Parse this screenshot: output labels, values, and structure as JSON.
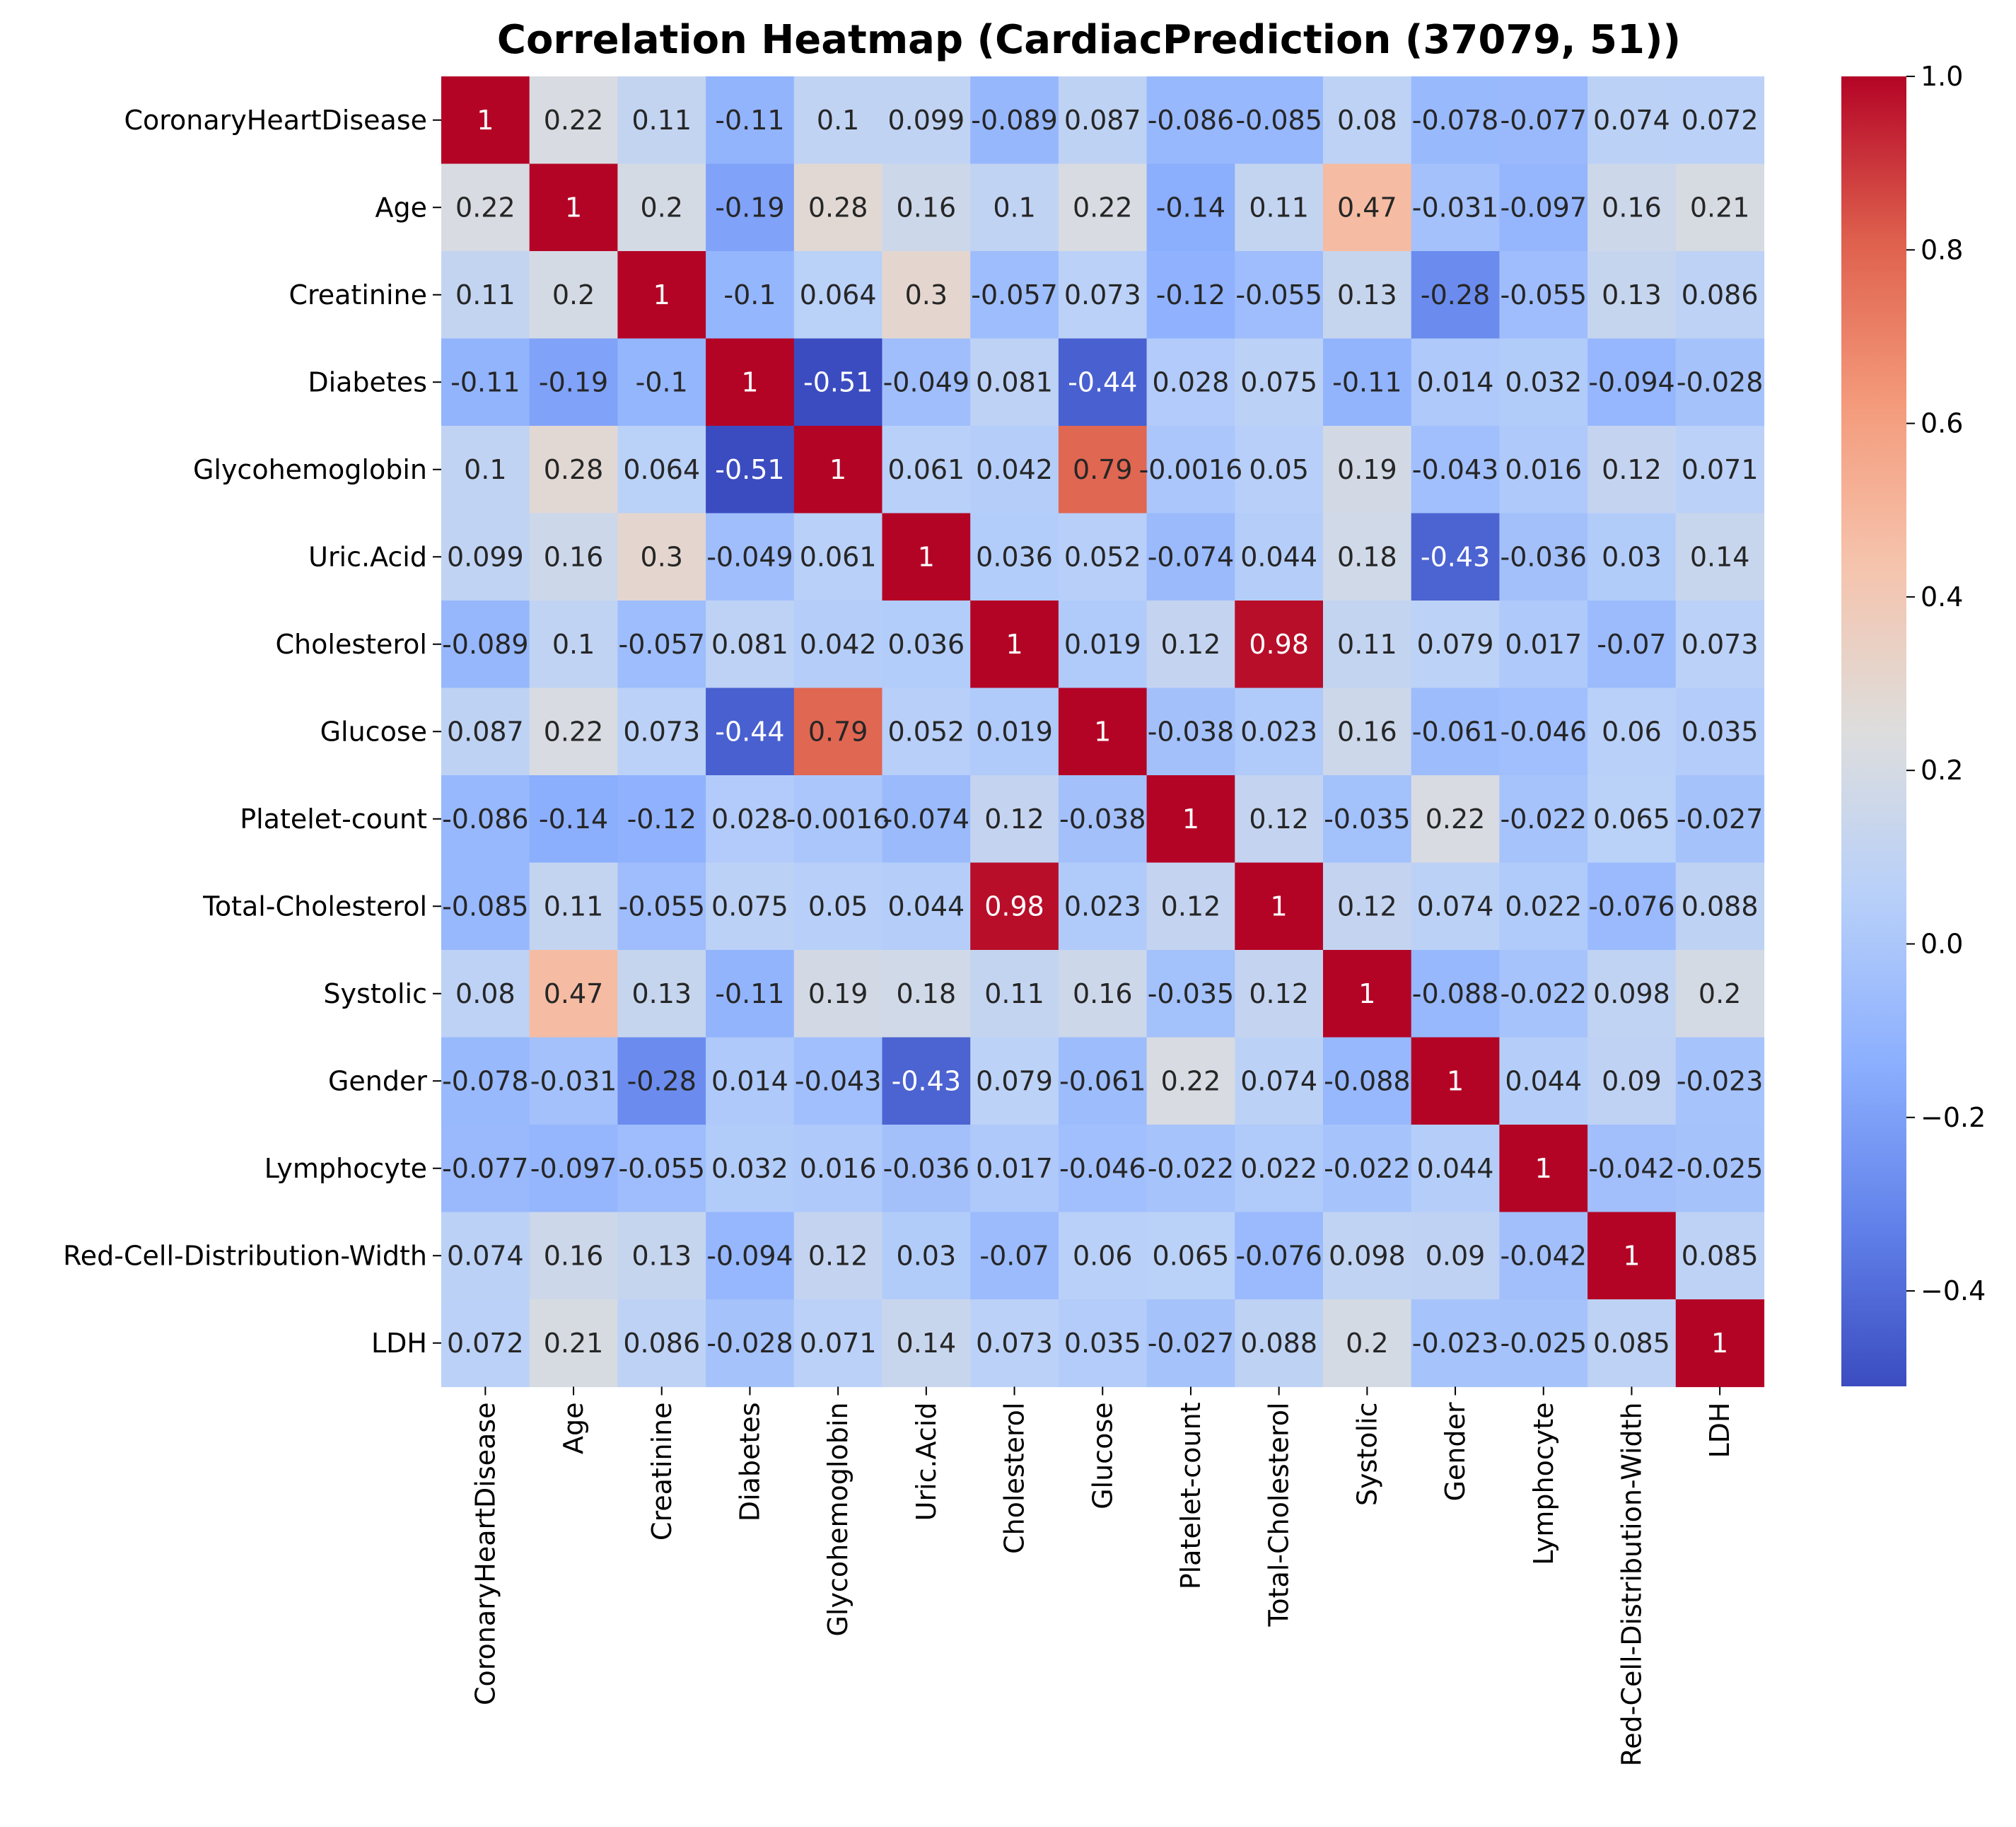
{
  "chart_data": {
    "type": "heatmap",
    "title": "Correlation Heatmap (CardiacPrediction (37079, 51))",
    "xlabel": "",
    "ylabel": "",
    "colormap": "coolwarm",
    "vmin": -0.51,
    "vmax": 1.0,
    "labels": [
      "CoronaryHeartDisease",
      "Age",
      "Creatinine",
      "Diabetes",
      "Glycohemoglobin",
      "Uric.Acid",
      "Cholesterol",
      "Glucose",
      "Platelet-count",
      "Total-Cholesterol",
      "Systolic",
      "Gender",
      "Lymphocyte",
      "Red-Cell-Distribution-Width",
      "LDH"
    ],
    "values": [
      [
        1,
        0.22,
        0.11,
        -0.11,
        0.1,
        0.099,
        -0.089,
        0.087,
        -0.086,
        -0.085,
        0.08,
        -0.078,
        -0.077,
        0.074,
        0.072
      ],
      [
        0.22,
        1,
        0.2,
        -0.19,
        0.28,
        0.16,
        0.1,
        0.22,
        -0.14,
        0.11,
        0.47,
        -0.031,
        -0.097,
        0.16,
        0.21
      ],
      [
        0.11,
        0.2,
        1,
        -0.1,
        0.064,
        0.3,
        -0.057,
        0.073,
        -0.12,
        -0.055,
        0.13,
        -0.28,
        -0.055,
        0.13,
        0.086
      ],
      [
        -0.11,
        -0.19,
        -0.1,
        1,
        -0.51,
        -0.049,
        0.081,
        -0.44,
        0.028,
        0.075,
        -0.11,
        0.014,
        0.032,
        -0.094,
        -0.028
      ],
      [
        0.1,
        0.28,
        0.064,
        -0.51,
        1,
        0.061,
        0.042,
        0.79,
        -0.0016,
        0.05,
        0.19,
        -0.043,
        0.016,
        0.12,
        0.071
      ],
      [
        0.099,
        0.16,
        0.3,
        -0.049,
        0.061,
        1,
        0.036,
        0.052,
        -0.074,
        0.044,
        0.18,
        -0.43,
        -0.036,
        0.03,
        0.14
      ],
      [
        -0.089,
        0.1,
        -0.057,
        0.081,
        0.042,
        0.036,
        1,
        0.019,
        0.12,
        0.98,
        0.11,
        0.079,
        0.017,
        -0.07,
        0.073
      ],
      [
        0.087,
        0.22,
        0.073,
        -0.44,
        0.79,
        0.052,
        0.019,
        1,
        -0.038,
        0.023,
        0.16,
        -0.061,
        -0.046,
        0.06,
        0.035
      ],
      [
        -0.086,
        -0.14,
        -0.12,
        0.028,
        -0.0016,
        -0.074,
        0.12,
        -0.038,
        1,
        0.12,
        -0.035,
        0.22,
        -0.022,
        0.065,
        -0.027
      ],
      [
        -0.085,
        0.11,
        -0.055,
        0.075,
        0.05,
        0.044,
        0.98,
        0.023,
        0.12,
        1,
        0.12,
        0.074,
        0.022,
        -0.076,
        0.088
      ],
      [
        0.08,
        0.47,
        0.13,
        -0.11,
        0.19,
        0.18,
        0.11,
        0.16,
        -0.035,
        0.12,
        1,
        -0.088,
        -0.022,
        0.098,
        0.2
      ],
      [
        -0.078,
        -0.031,
        -0.28,
        0.014,
        -0.043,
        -0.43,
        0.079,
        -0.061,
        0.22,
        0.074,
        -0.088,
        1,
        0.044,
        0.09,
        -0.023
      ],
      [
        -0.077,
        -0.097,
        -0.055,
        0.032,
        0.016,
        -0.036,
        0.017,
        -0.046,
        -0.022,
        0.022,
        -0.022,
        0.044,
        1,
        -0.042,
        -0.025
      ],
      [
        0.074,
        0.16,
        0.13,
        -0.094,
        0.12,
        0.03,
        -0.07,
        0.06,
        0.065,
        -0.076,
        0.098,
        0.09,
        -0.042,
        1,
        0.085
      ],
      [
        0.072,
        0.21,
        0.086,
        -0.028,
        0.071,
        0.14,
        0.073,
        0.035,
        -0.027,
        0.088,
        0.2,
        -0.023,
        -0.025,
        0.085,
        1
      ]
    ],
    "annotations": [
      [
        "1",
        "0.22",
        "0.11",
        "-0.11",
        "0.1",
        "0.099",
        "-0.089",
        "0.087",
        "-0.086",
        "-0.085",
        "0.08",
        "-0.078",
        "-0.077",
        "0.074",
        "0.072"
      ],
      [
        "0.22",
        "1",
        "0.2",
        "-0.19",
        "0.28",
        "0.16",
        "0.1",
        "0.22",
        "-0.14",
        "0.11",
        "0.47",
        "-0.031",
        "-0.097",
        "0.16",
        "0.21"
      ],
      [
        "0.11",
        "0.2",
        "1",
        "-0.1",
        "0.064",
        "0.3",
        "-0.057",
        "0.073",
        "-0.12",
        "-0.055",
        "0.13",
        "-0.28",
        "-0.055",
        "0.13",
        "0.086"
      ],
      [
        "-0.11",
        "-0.19",
        "-0.1",
        "1",
        "-0.51",
        "-0.049",
        "0.081",
        "-0.44",
        "0.028",
        "0.075",
        "-0.11",
        "0.014",
        "0.032",
        "-0.094",
        "-0.028"
      ],
      [
        "0.1",
        "0.28",
        "0.064",
        "-0.51",
        "1",
        "0.061",
        "0.042",
        "0.79",
        "-0.0016",
        "0.05",
        "0.19",
        "-0.043",
        "0.016",
        "0.12",
        "0.071"
      ],
      [
        "0.099",
        "0.16",
        "0.3",
        "-0.049",
        "0.061",
        "1",
        "0.036",
        "0.052",
        "-0.074",
        "0.044",
        "0.18",
        "-0.43",
        "-0.036",
        "0.03",
        "0.14"
      ],
      [
        "-0.089",
        "0.1",
        "-0.057",
        "0.081",
        "0.042",
        "0.036",
        "1",
        "0.019",
        "0.12",
        "0.98",
        "0.11",
        "0.079",
        "0.017",
        "-0.07",
        "0.073"
      ],
      [
        "0.087",
        "0.22",
        "0.073",
        "-0.44",
        "0.79",
        "0.052",
        "0.019",
        "1",
        "-0.038",
        "0.023",
        "0.16",
        "-0.061",
        "-0.046",
        "0.06",
        "0.035"
      ],
      [
        "-0.086",
        "-0.14",
        "-0.12",
        "0.028",
        "-0.0016",
        "-0.074",
        "0.12",
        "-0.038",
        "1",
        "0.12",
        "-0.035",
        "0.22",
        "-0.022",
        "0.065",
        "-0.027"
      ],
      [
        "-0.085",
        "0.11",
        "-0.055",
        "0.075",
        "0.05",
        "0.044",
        "0.98",
        "0.023",
        "0.12",
        "1",
        "0.12",
        "0.074",
        "0.022",
        "-0.076",
        "0.088"
      ],
      [
        "0.08",
        "0.47",
        "0.13",
        "-0.11",
        "0.19",
        "0.18",
        "0.11",
        "0.16",
        "-0.035",
        "0.12",
        "1",
        "-0.088",
        "-0.022",
        "0.098",
        "0.2"
      ],
      [
        "-0.078",
        "-0.031",
        "-0.28",
        "0.014",
        "-0.043",
        "-0.43",
        "0.079",
        "-0.061",
        "0.22",
        "0.074",
        "-0.088",
        "1",
        "0.044",
        "0.09",
        "-0.023"
      ],
      [
        "-0.077",
        "-0.097",
        "-0.055",
        "0.032",
        "0.016",
        "-0.036",
        "0.017",
        "-0.046",
        "-0.022",
        "0.022",
        "-0.022",
        "0.044",
        "1",
        "-0.042",
        "-0.025"
      ],
      [
        "0.074",
        "0.16",
        "0.13",
        "-0.094",
        "0.12",
        "0.03",
        "-0.07",
        "0.06",
        "0.065",
        "-0.076",
        "0.098",
        "0.09",
        "-0.042",
        "1",
        "0.085"
      ],
      [
        "0.072",
        "0.21",
        "0.086",
        "-0.028",
        "0.071",
        "0.14",
        "0.073",
        "0.035",
        "-0.027",
        "0.088",
        "0.2",
        "-0.023",
        "-0.025",
        "0.085",
        "1"
      ]
    ],
    "colorbar": {
      "ticks": [
        1.0,
        0.8,
        0.6,
        0.4,
        0.2,
        0.0,
        -0.2,
        -0.4
      ],
      "tick_labels": [
        "1.0",
        "0.8",
        "0.6",
        "0.4",
        "0.2",
        "0.0",
        "−0.2",
        "−0.4"
      ]
    },
    "grid": false,
    "legend": "colorbar-right"
  }
}
